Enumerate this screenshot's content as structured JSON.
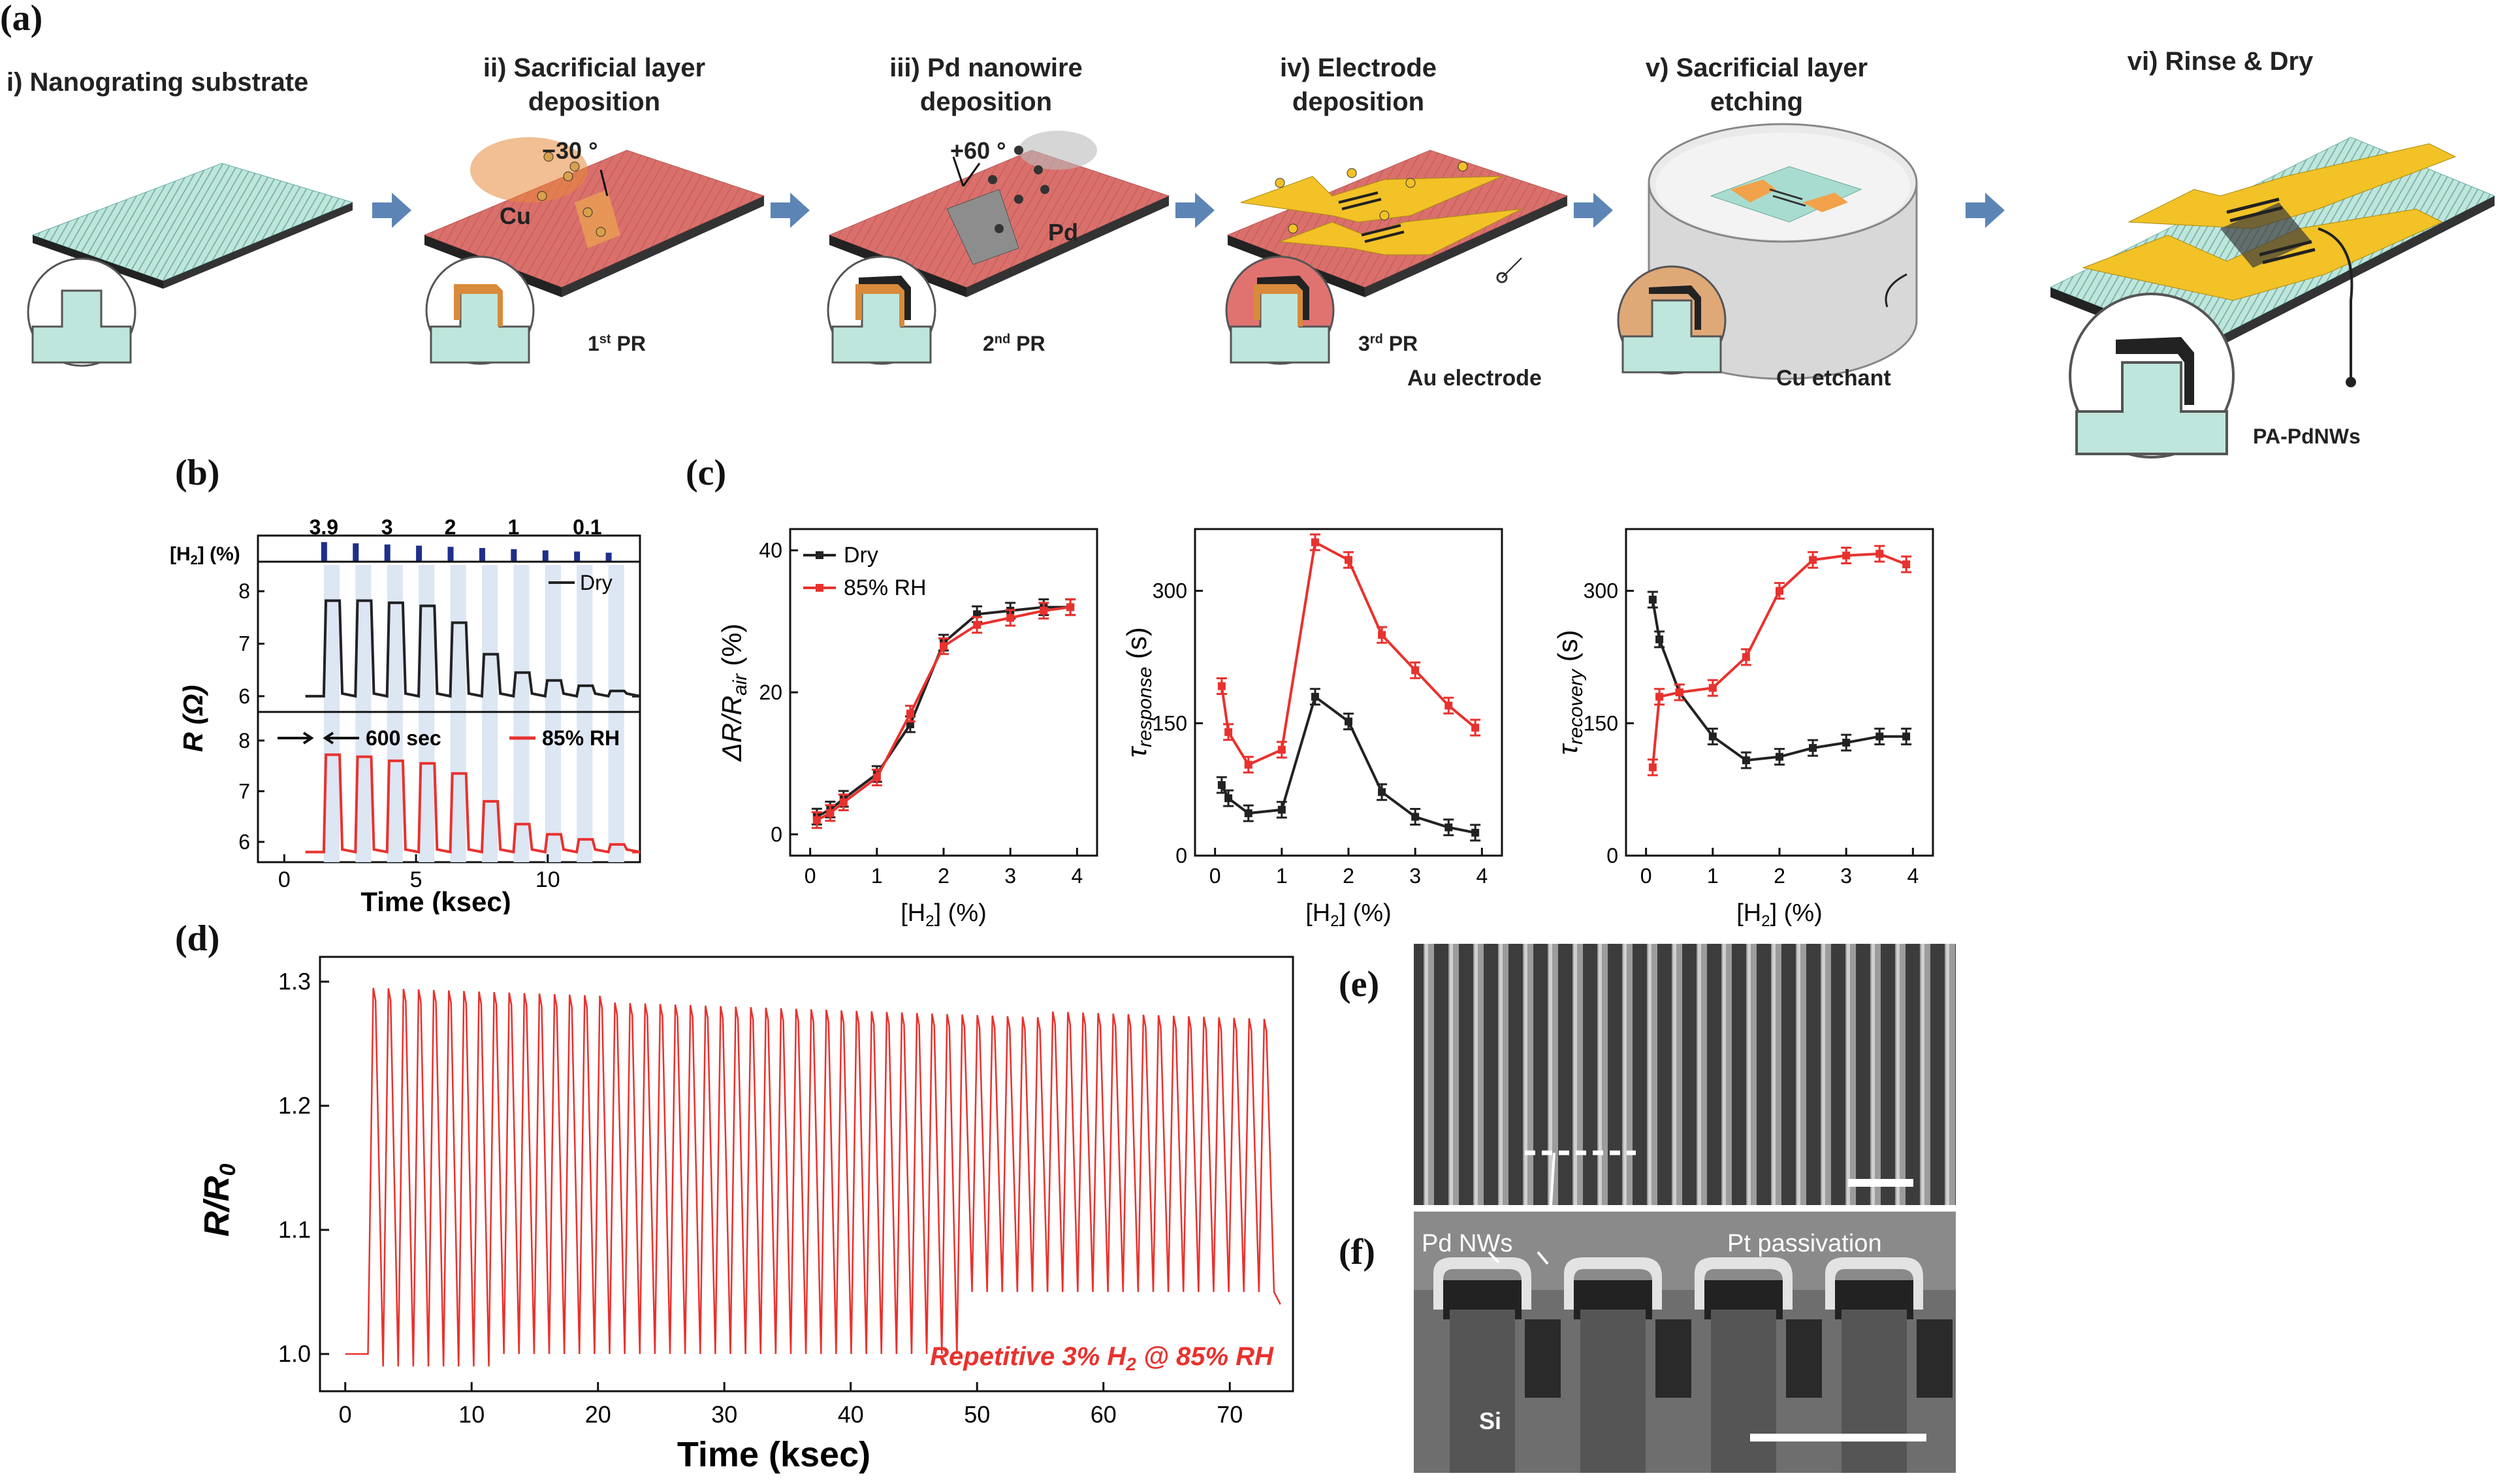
{
  "panel_labels": {
    "a": "(a)",
    "b": "(b)",
    "c": "(c)",
    "d": "(d)",
    "e": "(e)",
    "f": "(f)"
  },
  "fab_steps": [
    {
      "title_line1": "i) Nanograting substrate",
      "title_line2": ""
    },
    {
      "title_line1": "ii) Sacrificial layer",
      "title_line2": "deposition"
    },
    {
      "title_line1": "iii) Pd nanowire",
      "title_line2": "deposition"
    },
    {
      "title_line1": "iv) Electrode",
      "title_line2": "deposition"
    },
    {
      "title_line1": "v) Sacrificial layer",
      "title_line2": "etching"
    },
    {
      "title_line1": "vi) Rinse & Dry",
      "title_line2": ""
    }
  ],
  "fab_annotations": {
    "angle_cu": "−30 °",
    "cu": "Cu",
    "pr1_main": "1",
    "pr1_sup": "st",
    "pr1_suffix": " PR",
    "angle_pd": "+60 °",
    "pd": "Pd",
    "pr2_main": "2",
    "pr2_sup": "nd",
    "pr2_suffix": " PR",
    "pr3_main": "3",
    "pr3_sup": "rd",
    "pr3_suffix": " PR",
    "au_electrode": "Au electrode",
    "cu_etchant": "Cu etchant",
    "pa_pdnws": "PA-PdNWs"
  },
  "colors": {
    "dry": "#222222",
    "rh": "#e8322e",
    "pulse": "#1f2f8a",
    "band": "#dde6f3",
    "substrate": "#a9dcd0",
    "pr": "#d9706c",
    "gold": "#f2c227",
    "arrow": "#5c85b5"
  },
  "panel_b": {
    "h2_axis_label_main": "[H",
    "h2_axis_label_sub": "2",
    "h2_axis_label_end": "] (%)",
    "conc_labels": [
      "3.9",
      "3",
      "2",
      "1",
      "0.1"
    ],
    "ylabel": "R (Ω)",
    "xlabel": "Time (ksec)",
    "legend_dry": "Dry",
    "legend_rh": "85% RH",
    "annotation": "600 sec",
    "x_ticks": [
      "0",
      "5",
      "10"
    ],
    "y_ticks_top": [
      "8",
      "7",
      "6"
    ],
    "y_ticks_bottom": [
      "8",
      "7",
      "6"
    ]
  },
  "chart_data": [
    {
      "type": "line",
      "title": "",
      "xlabel": "Time (ksec)",
      "ylabel": "R (Ω)",
      "xlim": [
        -1,
        13.5
      ],
      "series": [
        {
          "name": "Dry",
          "ylim": [
            5.7,
            8.5
          ],
          "pulses_start_ksec": [
            1.5,
            2.7,
            3.9,
            5.1,
            6.3,
            7.5,
            8.7,
            9.9,
            11.1,
            12.3
          ],
          "pulse_high": [
            7.82,
            7.82,
            7.78,
            7.72,
            7.4,
            6.8,
            6.45,
            6.3,
            6.2,
            6.1
          ],
          "baseline": [
            6.0,
            6.0,
            6.0,
            6.0,
            6.0,
            6.0,
            6.0,
            6.0,
            6.0,
            6.0
          ]
        },
        {
          "name": "85% RH",
          "ylim": [
            5.6,
            8.5
          ],
          "pulses_start_ksec": [
            1.5,
            2.7,
            3.9,
            5.1,
            6.3,
            7.5,
            8.7,
            9.9,
            11.1,
            12.3
          ],
          "pulse_high": [
            7.72,
            7.68,
            7.6,
            7.55,
            7.35,
            6.8,
            6.35,
            6.15,
            6.05,
            5.95
          ],
          "baseline": [
            5.8,
            5.8,
            5.8,
            5.8,
            5.8,
            5.8,
            5.8,
            5.8,
            5.8,
            5.8
          ]
        }
      ]
    },
    {
      "type": "line",
      "ylabel": "ΔR/R_air (%)",
      "xlabel": "[H2] (%)",
      "xlim": [
        -0.3,
        4.3
      ],
      "ylim": [
        -3,
        43
      ],
      "x_ticks": [
        "0",
        "1",
        "2",
        "3",
        "4"
      ],
      "y_ticks": [
        "0",
        "20",
        "40"
      ],
      "x": [
        0.1,
        0.3,
        0.5,
        1.0,
        1.5,
        2.0,
        2.5,
        3.0,
        3.5,
        3.9
      ],
      "series": [
        {
          "name": "Dry",
          "values": [
            2.5,
            3.5,
            5,
            8.5,
            15.5,
            27,
            31,
            31.5,
            32,
            32
          ]
        },
        {
          "name": "85% RH",
          "values": [
            2,
            3,
            4.5,
            8,
            17,
            26.5,
            29.5,
            30.5,
            31.5,
            32
          ]
        }
      ]
    },
    {
      "type": "line",
      "ylabel": "τresponse (s)",
      "xlabel": "[H2] (%)",
      "xlim": [
        -0.3,
        4.3
      ],
      "ylim": [
        0,
        370
      ],
      "x_ticks": [
        "0",
        "1",
        "2",
        "3",
        "4"
      ],
      "y_ticks": [
        "0",
        "150",
        "300"
      ],
      "x": [
        0.1,
        0.2,
        0.5,
        1.0,
        1.5,
        2.0,
        2.5,
        3.0,
        3.5,
        3.9
      ],
      "series": [
        {
          "name": "Dry",
          "values": [
            80,
            65,
            48,
            52,
            180,
            152,
            72,
            44,
            32,
            26
          ]
        },
        {
          "name": "85% RH",
          "values": [
            192,
            140,
            103,
            120,
            355,
            335,
            250,
            210,
            170,
            145
          ]
        }
      ]
    },
    {
      "type": "line",
      "ylabel": "τrecovery (s)",
      "xlabel": "[H2] (%)",
      "xlim": [
        -0.3,
        4.3
      ],
      "ylim": [
        0,
        370
      ],
      "x_ticks": [
        "0",
        "1",
        "2",
        "3",
        "4"
      ],
      "y_ticks": [
        "0",
        "150",
        "300"
      ],
      "x": [
        0.1,
        0.2,
        0.5,
        1.0,
        1.5,
        2.0,
        2.5,
        3.0,
        3.5,
        3.9
      ],
      "series": [
        {
          "name": "Dry",
          "values": [
            290,
            245,
            185,
            135,
            108,
            112,
            122,
            128,
            135,
            135
          ]
        },
        {
          "name": "85% RH",
          "values": [
            100,
            180,
            185,
            190,
            225,
            300,
            335,
            340,
            342,
            330
          ]
        }
      ]
    },
    {
      "type": "line",
      "ylabel": "R/R0",
      "xlabel": "Time (ksec)",
      "xlim": [
        -2,
        75
      ],
      "ylim": [
        0.97,
        1.32
      ],
      "x_ticks": [
        "0",
        "10",
        "20",
        "30",
        "40",
        "50",
        "60",
        "70"
      ],
      "y_ticks": [
        "1.0",
        "1.1",
        "1.2",
        "1.3"
      ],
      "annotation": "Repetitive  3% H2 @ 85% RH",
      "series": [
        {
          "name": "",
          "cycles": 60,
          "start_ksec": 1.8,
          "end_ksec": 73.5,
          "peak_start": 1.295,
          "peak_end": 1.27,
          "baseline": 1.0,
          "trough_min": 0.99
        }
      ]
    }
  ],
  "panel_c": {
    "legend_dry": "Dry",
    "legend_rh": "85% RH",
    "ylabels": [
      "ΔR/R",
      "τ",
      "τ"
    ],
    "ylabel_subs": [
      "air",
      "response",
      "recovery"
    ],
    "ylabel_units": [
      " (%)",
      " (s)",
      " (s)"
    ],
    "xlabel_main": "[H",
    "xlabel_sub": "2",
    "xlabel_end": "] (%)"
  },
  "panel_d": {
    "ylabel_main": "R/R",
    "ylabel_sub": "0",
    "xlabel": "Time (ksec)",
    "annotation_main": "Repetitive  3% H",
    "annotation_sub": "2",
    "annotation_end": " @ 85% RH"
  },
  "panel_f": {
    "label_pd": "Pd NWs",
    "label_pt": "Pt passivation",
    "label_si": "Si"
  }
}
